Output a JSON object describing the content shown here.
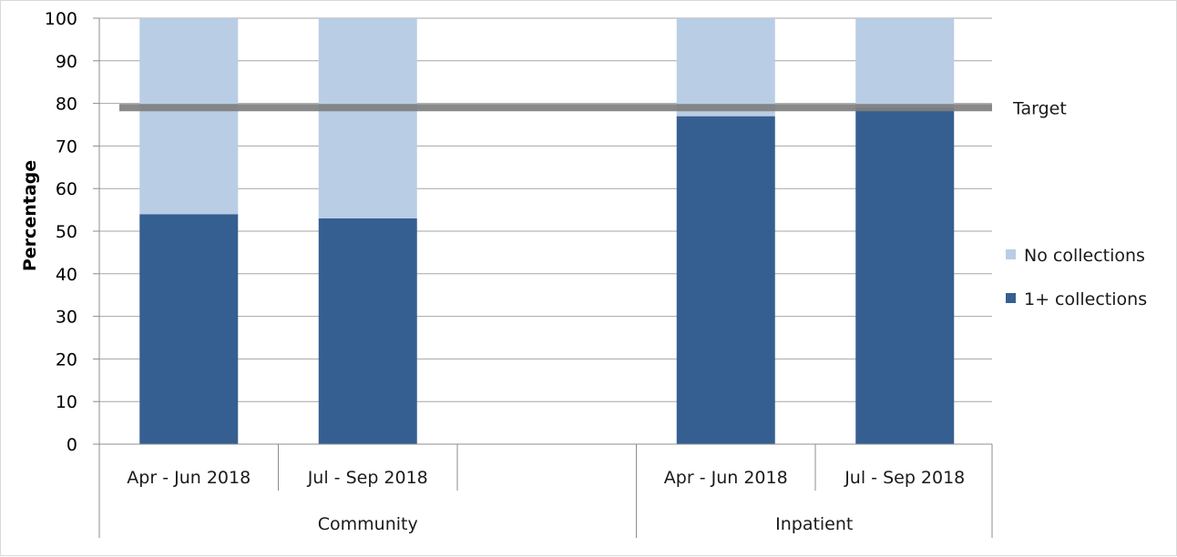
{
  "chart_data": {
    "type": "bar",
    "stacked": true,
    "ylabel": "Percentage",
    "ylim": [
      0,
      100
    ],
    "yticks": [
      0,
      10,
      20,
      30,
      40,
      50,
      60,
      70,
      80,
      90,
      100
    ],
    "grid": true,
    "legend_position": "right",
    "groups": [
      {
        "label": "Community",
        "categories": [
          "Apr - Jun 2018",
          "Jul - Sep 2018",
          ""
        ]
      },
      {
        "label": "Inpatient",
        "categories": [
          "Apr - Jun 2018",
          "Jul - Sep 2018"
        ]
      }
    ],
    "categories": [
      "Apr - Jun 2018",
      "Jul - Sep 2018",
      "",
      "Apr - Jun 2018",
      "Jul - Sep 2018"
    ],
    "series": [
      {
        "name": "1+ collections",
        "color": "#365f91",
        "values": [
          54,
          53,
          null,
          77,
          79
        ]
      },
      {
        "name": "No collections",
        "color": "#b9cde5",
        "values": [
          46,
          47,
          null,
          23,
          21
        ]
      }
    ],
    "target": {
      "label": "Target",
      "value": 79,
      "color": "#7f7f7f"
    }
  }
}
